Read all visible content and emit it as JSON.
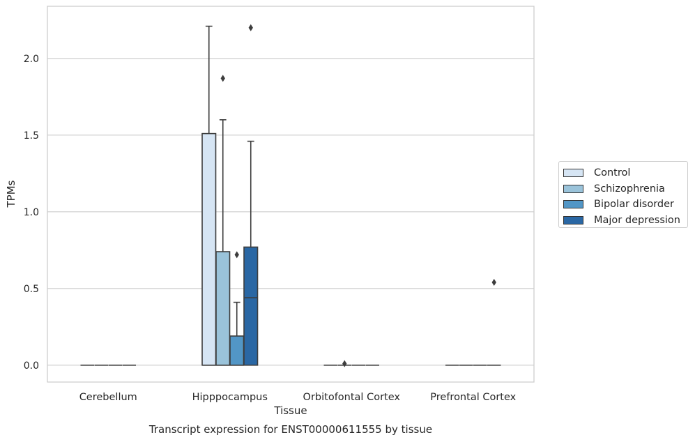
{
  "chart_data": {
    "type": "box",
    "title": "",
    "xlabel": "Tissue",
    "ylabel": "TPMs",
    "caption": "Transcript expression for ENST00000611555 by tissue",
    "categories": [
      "Cerebellum",
      "Hipppocampus",
      "Orbitofontal Cortex",
      "Prefrontal Cortex"
    ],
    "ylim": [
      -0.11,
      2.34
    ],
    "yticks": [
      0.0,
      0.5,
      1.0,
      1.5,
      2.0
    ],
    "ytick_labels": [
      "0.0",
      "0.5",
      "1.0",
      "1.5",
      "2.0"
    ],
    "grid": true,
    "legend_position": "right",
    "series": [
      {
        "name": "Control",
        "color": "#d6e5f4",
        "boxes": [
          {
            "min": 0,
            "q1": 0,
            "median": 0,
            "q3": 0,
            "max": 0,
            "outliers": []
          },
          {
            "min": 0,
            "q1": 0,
            "median": 0,
            "q3": 1.51,
            "max": 2.21,
            "outliers": []
          },
          {
            "min": 0,
            "q1": 0,
            "median": 0,
            "q3": 0,
            "max": 0,
            "outliers": []
          },
          {
            "min": 0,
            "q1": 0,
            "median": 0,
            "q3": 0,
            "max": 0,
            "outliers": []
          }
        ]
      },
      {
        "name": "Schizophrenia",
        "color": "#9ac3da",
        "boxes": [
          {
            "min": 0,
            "q1": 0,
            "median": 0,
            "q3": 0,
            "max": 0,
            "outliers": []
          },
          {
            "min": 0,
            "q1": 0,
            "median": 0,
            "q3": 0.74,
            "max": 1.6,
            "outliers": [
              1.87
            ]
          },
          {
            "min": 0,
            "q1": 0,
            "median": 0,
            "q3": 0,
            "max": 0,
            "outliers": [
              0.01
            ]
          },
          {
            "min": 0,
            "q1": 0,
            "median": 0,
            "q3": 0,
            "max": 0,
            "outliers": []
          }
        ]
      },
      {
        "name": "Bipolar disorder",
        "color": "#5296c6",
        "boxes": [
          {
            "min": 0,
            "q1": 0,
            "median": 0,
            "q3": 0,
            "max": 0,
            "outliers": []
          },
          {
            "min": 0,
            "q1": 0,
            "median": 0,
            "q3": 0.19,
            "max": 0.41,
            "outliers": [
              0.72
            ]
          },
          {
            "min": 0,
            "q1": 0,
            "median": 0,
            "q3": 0,
            "max": 0,
            "outliers": []
          },
          {
            "min": 0,
            "q1": 0,
            "median": 0,
            "q3": 0,
            "max": 0,
            "outliers": []
          }
        ]
      },
      {
        "name": "Major depression",
        "color": "#2a67a4",
        "boxes": [
          {
            "min": 0,
            "q1": 0,
            "median": 0,
            "q3": 0,
            "max": 0,
            "outliers": []
          },
          {
            "min": 0,
            "q1": 0,
            "median": 0.44,
            "q3": 0.77,
            "max": 1.46,
            "outliers": [
              2.2
            ]
          },
          {
            "min": 0,
            "q1": 0,
            "median": 0,
            "q3": 0,
            "max": 0,
            "outliers": []
          },
          {
            "min": 0,
            "q1": 0,
            "median": 0,
            "q3": 0,
            "max": 0,
            "outliers": [
              0.54
            ]
          }
        ]
      }
    ]
  }
}
